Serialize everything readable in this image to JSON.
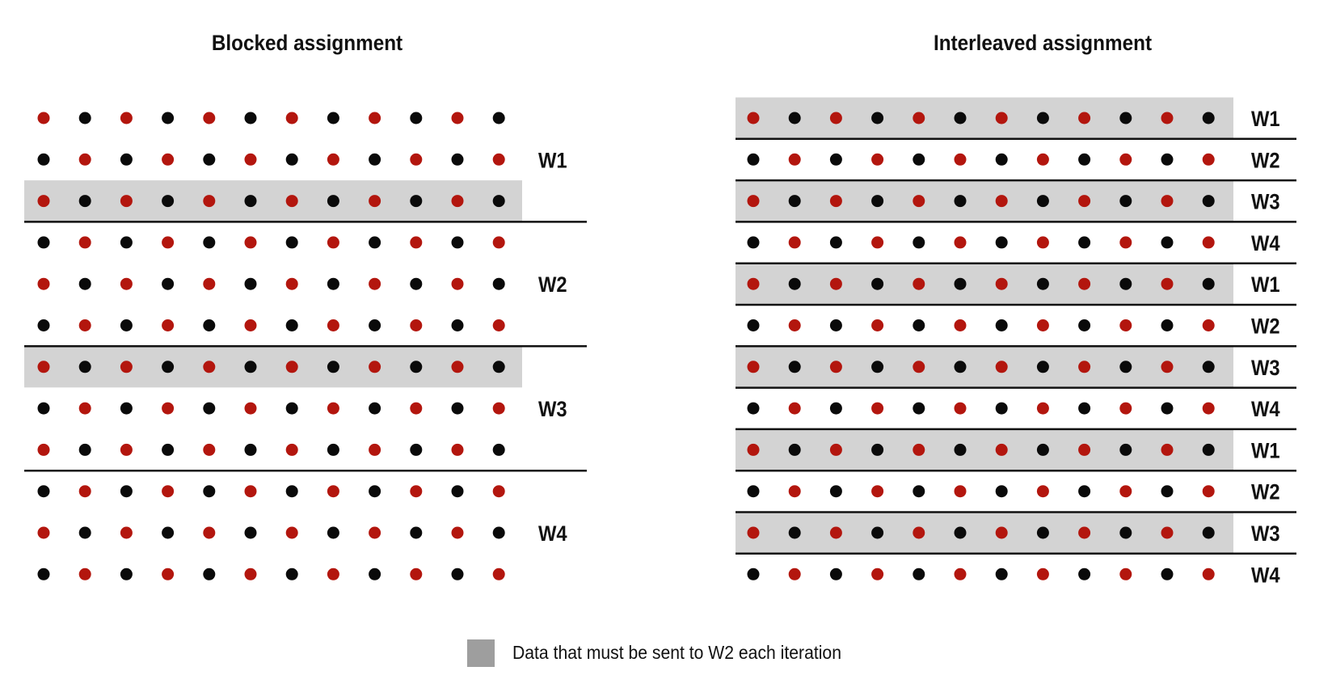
{
  "colors": {
    "red_dot": "#b3160e",
    "black_dot": "#0a0a0a",
    "shade": "#d3d3d3",
    "legend_swatch": "#9e9e9e",
    "line": "#111111"
  },
  "blocked": {
    "title": "Blocked assignment",
    "rows": 12,
    "cols": 12,
    "worker_labels": [
      "W1",
      "W2",
      "W3",
      "W4"
    ],
    "rows_per_worker": 3,
    "shaded_rows": [
      2,
      6
    ]
  },
  "interleaved": {
    "title": "Interleaved assignment",
    "rows": 12,
    "cols": 12,
    "row_labels": [
      "W1",
      "W2",
      "W3",
      "W4",
      "W1",
      "W2",
      "W3",
      "W4",
      "W1",
      "W2",
      "W3",
      "W4"
    ],
    "shaded_rows": [
      0,
      2,
      4,
      6,
      8,
      10
    ]
  },
  "legend": {
    "label": "Data that must be sent to W2 each iteration"
  }
}
